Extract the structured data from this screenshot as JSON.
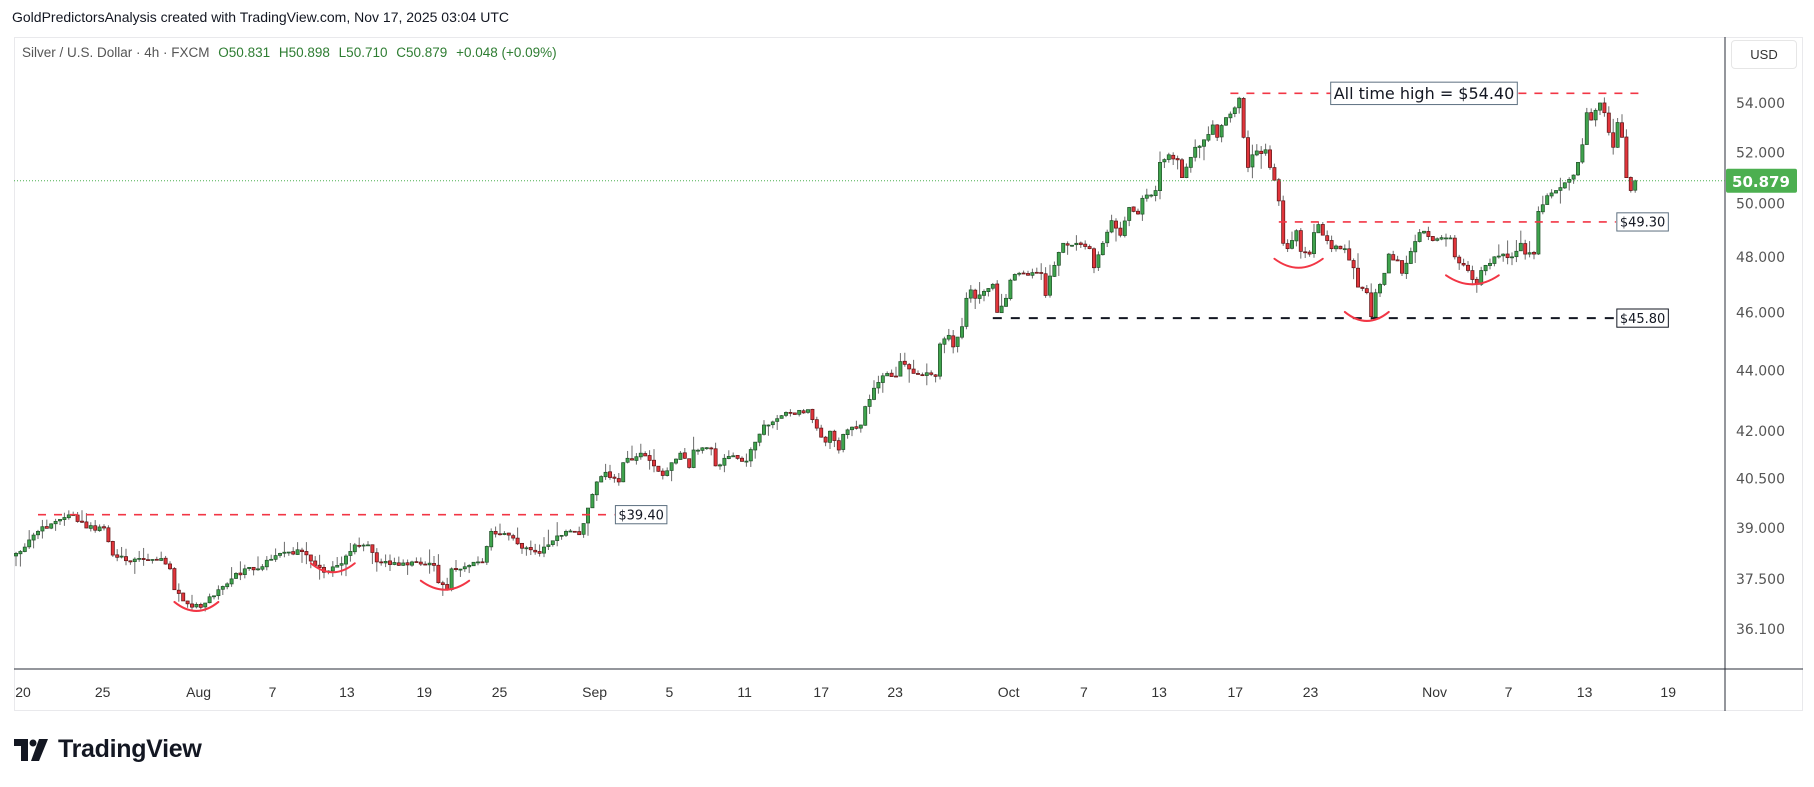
{
  "header": {
    "text": "GoldPredictorsAnalysis created with TradingView.com, Nov 17, 2025 03:04 UTC"
  },
  "legend": {
    "symbol": "Silver / U.S. Dollar · 4h · FXCM",
    "open": "O50.831",
    "high": "H50.898",
    "low": "L50.710",
    "close": "C50.879",
    "change": "+0.048 (+0.09%)"
  },
  "currency": "USD",
  "brand": "TradingView",
  "colors": {
    "up": "#3fa34d",
    "down": "#e0353b",
    "accent_red": "#f23645",
    "price_badge": "#4caf50",
    "black_line": "#131722"
  },
  "chart_data": {
    "type": "candlestick",
    "title": "Silver / U.S. Dollar · 4h · FXCM",
    "scale": "log",
    "ylim": [
      35.6,
      55.6
    ],
    "y_ticks": [
      "54.000",
      "52.000",
      "50.000",
      "48.000",
      "46.000",
      "44.000",
      "42.000",
      "40.500",
      "39.000",
      "37.500",
      "36.100"
    ],
    "last_price": "50.879",
    "bar_count": 369,
    "x_ticks": [
      {
        "label": "20",
        "bar": 1.6
      },
      {
        "label": "25",
        "bar": 19.7
      },
      {
        "label": "Aug",
        "bar": 41.5
      },
      {
        "label": "7",
        "bar": 58.3
      },
      {
        "label": "13",
        "bar": 75.2
      },
      {
        "label": "19",
        "bar": 92.8
      },
      {
        "label": "25",
        "bar": 109.9
      },
      {
        "label": "Sep",
        "bar": 131.5
      },
      {
        "label": "5",
        "bar": 148.5
      },
      {
        "label": "11",
        "bar": 165.6
      },
      {
        "label": "17",
        "bar": 183
      },
      {
        "label": "23",
        "bar": 199.8
      },
      {
        "label": "Oct",
        "bar": 225.6
      },
      {
        "label": "7",
        "bar": 242.7
      },
      {
        "label": "13",
        "bar": 259.8
      },
      {
        "label": "17",
        "bar": 277.1
      },
      {
        "label": "23",
        "bar": 294.2
      },
      {
        "label": "Nov",
        "bar": 322.4
      },
      {
        "label": "7",
        "bar": 339.2
      },
      {
        "label": "13",
        "bar": 356.5
      },
      {
        "label": "19",
        "bar": 375.5
      }
    ],
    "close_path": [
      [
        0,
        38.25
      ],
      [
        5,
        38.9
      ],
      [
        9,
        39.2
      ],
      [
        13,
        39.4
      ],
      [
        16,
        39.0
      ],
      [
        20,
        39.0
      ],
      [
        22,
        38.2
      ],
      [
        26,
        38.0
      ],
      [
        33,
        38.1
      ],
      [
        35,
        37.8
      ],
      [
        36,
        37.2
      ],
      [
        39,
        36.8
      ],
      [
        42,
        36.7
      ],
      [
        44,
        37.0
      ],
      [
        46,
        37.2
      ],
      [
        52,
        37.8
      ],
      [
        55,
        37.8
      ],
      [
        60,
        38.25
      ],
      [
        65,
        38.3
      ],
      [
        68,
        37.9
      ],
      [
        70,
        37.7
      ],
      [
        74,
        37.95
      ],
      [
        77,
        38.5
      ],
      [
        80,
        38.5
      ],
      [
        82,
        38.0
      ],
      [
        87,
        37.9
      ],
      [
        90,
        38.0
      ],
      [
        95,
        37.9
      ],
      [
        96,
        37.4
      ],
      [
        98,
        37.2
      ],
      [
        99,
        37.8
      ],
      [
        103,
        37.9
      ],
      [
        106,
        38.0
      ],
      [
        108,
        38.9
      ],
      [
        113,
        38.7
      ],
      [
        115,
        38.4
      ],
      [
        119,
        38.25
      ],
      [
        121,
        38.5
      ],
      [
        125,
        38.9
      ],
      [
        128,
        38.8
      ],
      [
        130,
        39.6
      ],
      [
        132,
        40.4
      ],
      [
        134,
        40.7
      ],
      [
        137,
        40.4
      ],
      [
        138,
        41.0
      ],
      [
        142,
        41.3
      ],
      [
        145,
        40.9
      ],
      [
        147,
        40.6
      ],
      [
        149,
        41.0
      ],
      [
        151,
        41.3
      ],
      [
        153,
        40.85
      ],
      [
        154,
        41.4
      ],
      [
        158,
        41.45
      ],
      [
        159,
        40.9
      ],
      [
        162,
        41.2
      ],
      [
        166,
        41.05
      ],
      [
        168,
        41.65
      ],
      [
        170,
        42.2
      ],
      [
        172,
        42.3
      ],
      [
        176,
        42.6
      ],
      [
        180,
        42.7
      ],
      [
        182,
        42.1
      ],
      [
        184,
        41.65
      ],
      [
        185,
        42.0
      ],
      [
        187,
        41.4
      ],
      [
        188,
        41.9
      ],
      [
        192,
        42.2
      ],
      [
        193,
        42.8
      ],
      [
        196,
        43.6
      ],
      [
        198,
        43.9
      ],
      [
        200,
        43.8
      ],
      [
        201,
        44.3
      ],
      [
        204,
        43.9
      ],
      [
        209,
        43.8
      ],
      [
        210,
        44.9
      ],
      [
        212,
        45.2
      ],
      [
        213,
        44.8
      ],
      [
        215,
        45.5
      ],
      [
        216,
        46.5
      ],
      [
        217,
        46.8
      ],
      [
        218,
        46.5
      ],
      [
        222,
        47.0
      ],
      [
        223,
        46.0
      ],
      [
        225,
        46.5
      ],
      [
        226,
        47.15
      ],
      [
        228,
        47.4
      ],
      [
        233,
        47.4
      ],
      [
        234,
        46.6
      ],
      [
        235,
        47.3
      ],
      [
        238,
        48.5
      ],
      [
        241,
        48.5
      ],
      [
        244,
        48.3
      ],
      [
        245,
        47.6
      ],
      [
        247,
        48.5
      ],
      [
        249,
        49.35
      ],
      [
        251,
        48.8
      ],
      [
        253,
        49.85
      ],
      [
        255,
        49.6
      ],
      [
        256,
        50.2
      ],
      [
        259,
        50.5
      ],
      [
        260,
        51.6
      ],
      [
        262,
        51.9
      ],
      [
        264,
        51.7
      ],
      [
        265,
        51.0
      ],
      [
        267,
        51.8
      ],
      [
        268,
        52.2
      ],
      [
        270,
        52.5
      ],
      [
        272,
        53.1
      ],
      [
        273,
        52.6
      ],
      [
        275,
        53.4
      ],
      [
        277,
        53.8
      ],
      [
        278,
        54.2
      ],
      [
        279,
        52.6
      ],
      [
        280,
        51.4
      ],
      [
        281,
        51.9
      ],
      [
        284,
        52.1
      ],
      [
        285,
        51.4
      ],
      [
        286,
        50.9
      ],
      [
        287,
        50.1
      ],
      [
        288,
        48.5
      ],
      [
        289,
        48.3
      ],
      [
        291,
        48.97
      ],
      [
        292,
        48.2
      ],
      [
        294,
        48.1
      ],
      [
        295,
        48.9
      ],
      [
        296,
        49.2
      ],
      [
        298,
        48.6
      ],
      [
        299,
        48.3
      ],
      [
        300,
        48.4
      ],
      [
        302,
        48.3
      ],
      [
        304,
        47.6
      ],
      [
        305,
        46.9
      ],
      [
        307,
        46.7
      ],
      [
        308,
        45.85
      ],
      [
        309,
        46.7
      ],
      [
        311,
        47.4
      ],
      [
        312,
        48.1
      ],
      [
        314,
        47.85
      ],
      [
        315,
        47.4
      ],
      [
        317,
        48.2
      ],
      [
        319,
        48.9
      ],
      [
        320,
        48.95
      ],
      [
        322,
        48.6
      ],
      [
        325,
        48.7
      ],
      [
        326,
        48.7
      ],
      [
        327,
        48.0
      ],
      [
        329,
        47.7
      ],
      [
        330,
        47.5
      ],
      [
        332,
        47.0
      ],
      [
        333,
        47.5
      ],
      [
        336,
        48.0
      ],
      [
        338,
        48.1
      ],
      [
        340,
        48.0
      ],
      [
        342,
        48.5
      ],
      [
        343,
        48.1
      ],
      [
        345,
        48.1
      ],
      [
        346,
        49.7
      ],
      [
        348,
        50.3
      ],
      [
        350,
        50.5
      ],
      [
        352,
        50.8
      ],
      [
        354,
        51.1
      ],
      [
        355,
        51.6
      ],
      [
        356,
        52.3
      ],
      [
        357,
        53.6
      ],
      [
        358,
        53.3
      ],
      [
        360,
        54.0
      ],
      [
        361,
        53.6
      ],
      [
        362,
        52.8
      ],
      [
        363,
        52.2
      ],
      [
        364,
        53.2
      ],
      [
        365,
        52.6
      ],
      [
        366,
        51.0
      ],
      [
        367,
        50.5
      ],
      [
        368,
        50.879
      ]
    ],
    "levels": [
      {
        "price": 39.4,
        "from_bar": 5,
        "to_bar": 136,
        "style": "red",
        "label": "$39.40",
        "label_pos": "end"
      },
      {
        "price": 54.4,
        "from_bar": 276,
        "to_bar": 370,
        "style": "red",
        "label": "All time high = $54.40",
        "label_pos": "middle"
      },
      {
        "price": 49.3,
        "from_bar": 287,
        "to_bar": 363.6,
        "style": "red",
        "label": "$49.30",
        "label_pos": "end"
      },
      {
        "price": 45.8,
        "from_bar": 222,
        "to_bar": 363.6,
        "style": "black",
        "label": "$45.80",
        "label_pos": "end"
      }
    ],
    "bottom_arcs": [
      {
        "from_bar": 36,
        "to_bar": 46,
        "price": 36.6
      },
      {
        "from_bar": 67,
        "to_bar": 77,
        "price": 37.7
      },
      {
        "from_bar": 92,
        "to_bar": 103,
        "price": 37.2
      },
      {
        "from_bar": 286,
        "to_bar": 297,
        "price": 47.6
      },
      {
        "from_bar": 302,
        "to_bar": 312,
        "price": 45.7
      },
      {
        "from_bar": 325,
        "to_bar": 337,
        "price": 47.0
      }
    ]
  }
}
